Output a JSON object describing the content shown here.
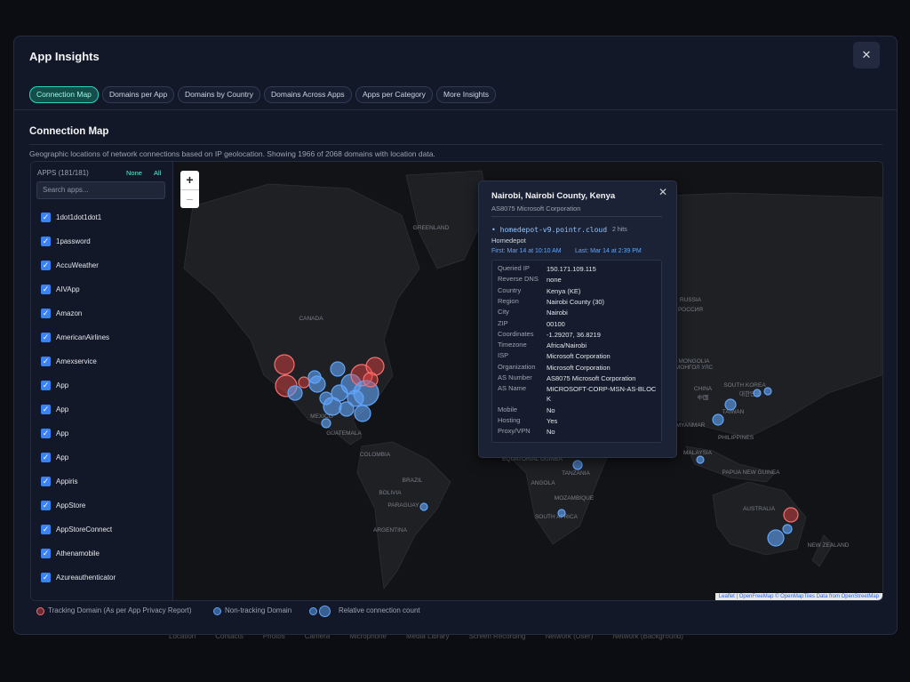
{
  "header": {
    "title": "App Insights",
    "close": "✕"
  },
  "tabs": [
    "Connection Map",
    "Domains per App",
    "Domains by Country",
    "Domains Across Apps",
    "Apps per Category",
    "More Insights"
  ],
  "section": {
    "title": "Connection Map",
    "description": "Geographic locations of network connections based on IP geolocation. Showing 1966 of 2068 domains with location data."
  },
  "sidebar": {
    "apps_label": "APPS (181/181)",
    "none": "None",
    "all": "All",
    "search_placeholder": "Search apps...",
    "apps": [
      "1dot1dot1dot1",
      "1password",
      "AccuWeather",
      "AIVApp",
      "Amazon",
      "AmericanAirlines",
      "Amexservice",
      "App",
      "App",
      "App",
      "App",
      "Appiris",
      "AppStore",
      "AppStoreConnect",
      "Athenamobile",
      "Azureauthenticator"
    ]
  },
  "map": {
    "zoom_in": "+",
    "zoom_out": "−",
    "labels": [
      "GREENLAND",
      "CANADA",
      "MEXICO",
      "GUATEMALA",
      "COLOMBIA",
      "BRAZIL",
      "BOLIVIA",
      "PARAGUAY",
      "ARGENTINA",
      "RUSSIA",
      "РОССИЯ",
      "MONGOLIA",
      "МОНГОЛ УЛС",
      "CHINA",
      "中国",
      "SOUTH KOREA",
      "대한민국",
      "TAIWAN",
      "MYANMAR",
      "PHILIPPINES",
      "MALAYSIA",
      "PAPUA NEW GUINEA",
      "AUSTRALIA",
      "NEW ZEALAND",
      "EQUATORIAL GUINEA",
      "TANZANIA",
      "ANGOLA",
      "MOZAMBIQUE",
      "SOUTH AFRICA"
    ],
    "attribution": "Leaflet | OpenFreeMap © OpenMapTiles Data from OpenStreetMap"
  },
  "popup": {
    "title": "Nairobi, Nairobi County, Kenya",
    "asn": "AS8075 Microsoft Corporation",
    "domain": "homedepot-v9.pointr.cloud",
    "hits": "2 hits",
    "app": "Homedepot",
    "first": "First: Mar 14 at 10:10 AM",
    "last": "Last: Mar 14 at 2:39 PM",
    "rows": [
      [
        "Queried IP",
        "150.171.109.115"
      ],
      [
        "Reverse DNS",
        "none"
      ],
      [
        "Country",
        "Kenya (KE)"
      ],
      [
        "Region",
        "Nairobi County (30)"
      ],
      [
        "City",
        "Nairobi"
      ],
      [
        "ZIP",
        "00100"
      ],
      [
        "Coordinates",
        "-1.29207, 36.8219"
      ],
      [
        "Timezone",
        "Africa/Nairobi"
      ],
      [
        "ISP",
        "Microsoft Corporation"
      ],
      [
        "Organization",
        "Microsoft Corporation"
      ],
      [
        "AS Number",
        "AS8075 Microsoft Corporation"
      ],
      [
        "AS Name",
        "MICROSOFT-CORP-MSN-AS-BLOCK"
      ],
      [
        "Mobile",
        "No"
      ],
      [
        "Hosting",
        "Yes"
      ],
      [
        "Proxy/VPN",
        "No"
      ]
    ]
  },
  "legend": [
    "Tracking Domain (As per App Privacy Report)",
    "Non-tracking Domain",
    "Relative connection count"
  ],
  "background_tabs": [
    "Location",
    "Contacts",
    "Photos",
    "Camera",
    "Microphone",
    "Media Library",
    "Screen Recording",
    "Network (User)",
    "Network (Background)"
  ]
}
